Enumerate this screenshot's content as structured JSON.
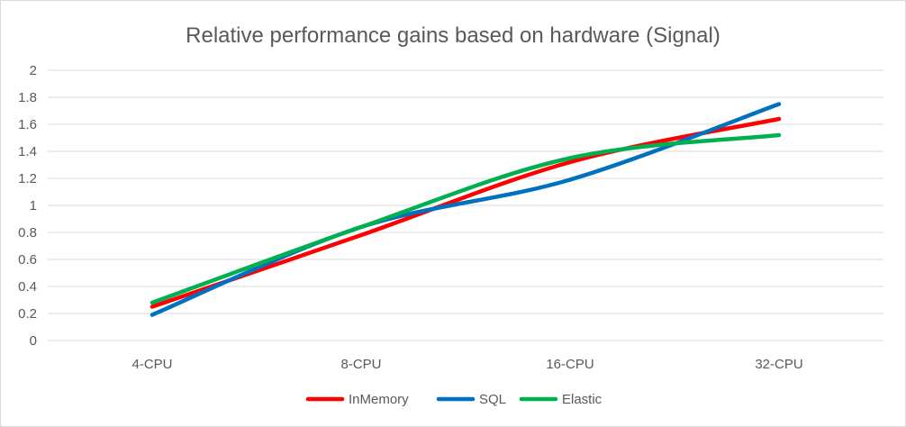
{
  "chart_data": {
    "type": "line",
    "title": "Relative performance gains based on hardware (Signal)",
    "categories": [
      "4-CPU",
      "8-CPU",
      "16-CPU",
      "32-CPU"
    ],
    "series": [
      {
        "name": "InMemory",
        "values": [
          0.25,
          0.78,
          1.32,
          1.64
        ],
        "color": "#ff0000"
      },
      {
        "name": "SQL",
        "values": [
          0.19,
          0.84,
          1.19,
          1.75
        ],
        "color": "#0070c0"
      },
      {
        "name": "Elastic",
        "values": [
          0.28,
          0.84,
          1.35,
          1.52
        ],
        "color": "#00b050"
      }
    ],
    "ylim": [
      0,
      2
    ],
    "y_ticks": [
      0,
      0.2,
      0.4,
      0.6,
      0.8,
      1,
      1.2,
      1.4,
      1.6,
      1.8,
      2
    ],
    "grid": true,
    "legend_position": "bottom",
    "smooth_lines": true
  }
}
